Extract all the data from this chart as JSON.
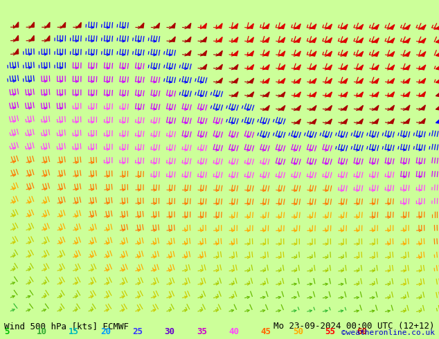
{
  "title_left": "Wind 500 hPa [kts] ECMWF",
  "title_right": "Mo 23-09-2024 00:00 UTC (12+12)",
  "copyright": "©weatheronline.co.uk",
  "background_color": "#ccff99",
  "legend_values": [
    5,
    10,
    15,
    20,
    25,
    30,
    35,
    40,
    45,
    50,
    55,
    60
  ],
  "legend_colors": [
    "#00cc00",
    "#33cc00",
    "#66cc00",
    "#99cc00",
    "#cccc00",
    "#ffcc00",
    "#ff9900",
    "#ff6600",
    "#ff00ff",
    "#cc00ff",
    "#ff0000",
    "#ff0000"
  ],
  "wind_color_scale": [
    {
      "max": 5,
      "color": "#00dd00"
    },
    {
      "max": 10,
      "color": "#33cc33"
    },
    {
      "max": 15,
      "color": "#66bb00"
    },
    {
      "max": 20,
      "color": "#aacc00"
    },
    {
      "max": 25,
      "color": "#ddcc00"
    },
    {
      "max": 30,
      "color": "#ffaa00"
    },
    {
      "max": 35,
      "color": "#ff8800"
    },
    {
      "max": 40,
      "color": "#ff44ff"
    },
    {
      "max": 45,
      "color": "#cc00ff"
    },
    {
      "max": 50,
      "color": "#0000ff"
    },
    {
      "max": 55,
      "color": "#cc0000"
    },
    {
      "max": 999,
      "color": "#ff0000"
    }
  ],
  "font_size_title": 9,
  "font_size_legend": 9
}
